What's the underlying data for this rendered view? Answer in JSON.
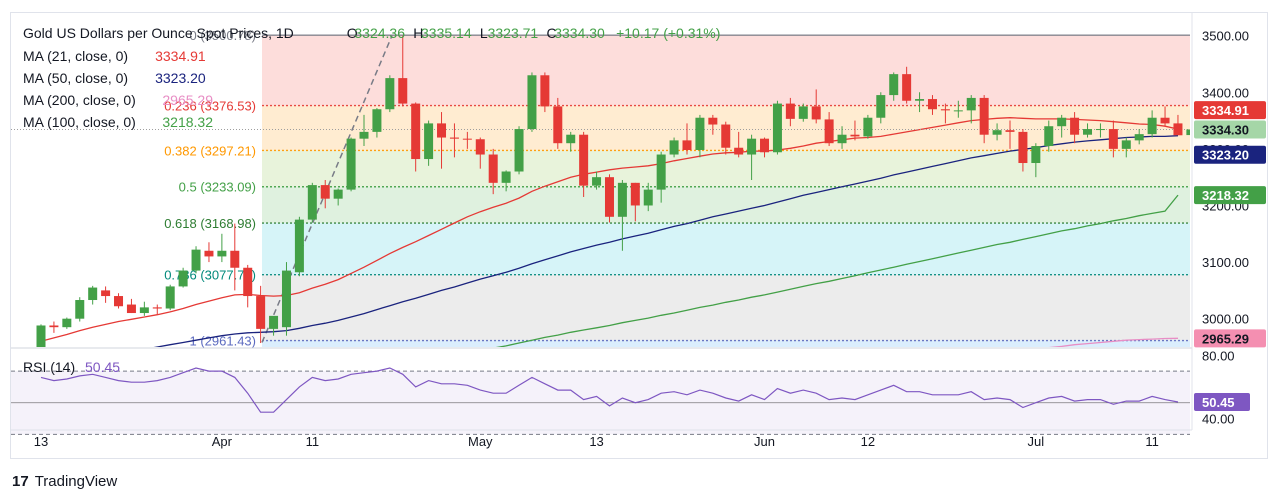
{
  "header": {
    "title": "Gold US Dollars per Ounce Spot Prices, 1D",
    "o_label": "O",
    "o": "3324.36",
    "h_label": "H",
    "h": "3335.14",
    "l_label": "L",
    "l": "3323.71",
    "c_label": "C",
    "c": "3334.30",
    "change": "+10.17 (+0.31%)"
  },
  "indicators": [
    {
      "label": "MA (21, close, 0)",
      "value": "3334.91",
      "color": "#e53935"
    },
    {
      "label": "MA (50, close, 0)",
      "value": "3323.20",
      "color": "#1a237e"
    },
    {
      "label": "MA (200, close, 0)",
      "value": "2965.29",
      "color": "#e88ec5"
    },
    {
      "label": "MA (100, close, 0)",
      "value": "3218.32",
      "color": "#43a047"
    }
  ],
  "rsi": {
    "label": "RSI (14)",
    "value": "50.45",
    "color": "#7e57c2",
    "upper": 70,
    "lower": 30,
    "ticks": [
      "80.00",
      "40.00"
    ]
  },
  "price_axis": {
    "ticks": [
      "3500.00",
      "3400.00",
      "3300.00",
      "3200.00",
      "3100.00",
      "3000.00"
    ]
  },
  "price_badges": [
    {
      "value": "3334.91",
      "color": "#e53935"
    },
    {
      "value": "3334.30",
      "color": "#a5d6a7"
    },
    {
      "value": "3323.20",
      "color": "#1a237e"
    },
    {
      "value": "3218.32",
      "color": "#43a047"
    },
    {
      "value": "2965.29",
      "color": "#f48fb1"
    }
  ],
  "rsi_badge": {
    "value": "50.45",
    "color": "#7e57c2"
  },
  "x_axis": {
    "labels": [
      "13",
      "Apr",
      "11",
      "May",
      "13",
      "Jun",
      "12",
      "Jul",
      "11"
    ]
  },
  "fib": [
    {
      "ratio": "0",
      "level": "3500.78",
      "label": "0 (3500.78)"
    },
    {
      "ratio": "0.236",
      "level": "3376.53",
      "label": "0.236 (3376.53)"
    },
    {
      "ratio": "0.382",
      "level": "3297.21",
      "label": "0.382 (3297.21)"
    },
    {
      "ratio": "0.5",
      "level": "3233.09",
      "label": "0.5 (3233.09)"
    },
    {
      "ratio": "0.618",
      "level": "3168.98",
      "label": "0.618 (3168.98)"
    },
    {
      "ratio": "0.786",
      "level": "3077.70",
      "label": "0.786 (3077.70)"
    },
    {
      "ratio": "1",
      "level": "2961.43",
      "label": "1 (2961.43)"
    }
  ],
  "brand": {
    "mark": "17",
    "name": "TradingView"
  },
  "colors": {
    "up": "#43a047",
    "down": "#e53935",
    "ma21": "#e53935",
    "ma50": "#1a237e",
    "ma100": "#43a047",
    "ma200": "#e88ec5",
    "rsi": "#7e57c2"
  },
  "chart_data": {
    "type": "candlestick",
    "title": "Gold US Dollars per Ounce Spot Prices, 1D",
    "timeframe": "1D",
    "ylim": [
      2950,
      3540
    ],
    "x": [
      "Mar 13",
      "Mar 14",
      "Mar 17",
      "Mar 18",
      "Mar 19",
      "Mar 20",
      "Mar 21",
      "Mar 24",
      "Mar 25",
      "Mar 26",
      "Mar 27",
      "Mar 28",
      "Mar 31",
      "Apr 1",
      "Apr 2",
      "Apr 3",
      "Apr 4",
      "Apr 7",
      "Apr 8",
      "Apr 9",
      "Apr 10",
      "Apr 11",
      "Apr 14",
      "Apr 15",
      "Apr 16",
      "Apr 17",
      "Apr 18",
      "Apr 21",
      "Apr 22",
      "Apr 23",
      "Apr 24",
      "Apr 25",
      "Apr 28",
      "Apr 29",
      "Apr 30",
      "May 1",
      "May 2",
      "May 5",
      "May 6",
      "May 7",
      "May 8",
      "May 9",
      "May 12",
      "May 13",
      "May 14",
      "May 15",
      "May 16",
      "May 19",
      "May 20",
      "May 21",
      "May 22",
      "May 23",
      "May 26",
      "May 27",
      "May 28",
      "May 29",
      "May 30",
      "Jun 2",
      "Jun 3",
      "Jun 4",
      "Jun 5",
      "Jun 6",
      "Jun 9",
      "Jun 10",
      "Jun 11",
      "Jun 12",
      "Jun 13",
      "Jun 16",
      "Jun 17",
      "Jun 18",
      "Jun 19",
      "Jun 20",
      "Jun 23",
      "Jun 24",
      "Jun 25",
      "Jun 26",
      "Jun 27",
      "Jun 30",
      "Jul 1",
      "Jul 2",
      "Jul 3",
      "Jul 4",
      "Jul 7",
      "Jul 8",
      "Jul 9",
      "Jul 10",
      "Jul 11",
      "Jul 14",
      "Jul 15"
    ],
    "ohlc": [
      [
        2935,
        2990,
        2930,
        2988
      ],
      [
        2988,
        2995,
        2975,
        2985
      ],
      [
        2985,
        3002,
        2982,
        3000
      ],
      [
        3000,
        3038,
        2995,
        3033
      ],
      [
        3033,
        3058,
        3025,
        3055
      ],
      [
        3050,
        3057,
        3028,
        3040
      ],
      [
        3040,
        3045,
        3018,
        3022
      ],
      [
        3025,
        3035,
        3010,
        3010
      ],
      [
        3010,
        3030,
        3005,
        3020
      ],
      [
        3020,
        3025,
        3008,
        3018
      ],
      [
        3018,
        3060,
        3015,
        3057
      ],
      [
        3057,
        3090,
        3055,
        3085
      ],
      [
        3085,
        3128,
        3080,
        3122
      ],
      [
        3120,
        3135,
        3100,
        3110
      ],
      [
        3110,
        3150,
        3100,
        3120
      ],
      [
        3120,
        3168,
        3050,
        3090
      ],
      [
        3090,
        3095,
        3020,
        3040
      ],
      [
        3040,
        3058,
        2957,
        2982
      ],
      [
        2982,
        3000,
        2970,
        3005
      ],
      [
        2985,
        3100,
        2970,
        3085
      ],
      [
        3082,
        3180,
        3075,
        3175
      ],
      [
        3175,
        3240,
        3170,
        3236
      ],
      [
        3236,
        3245,
        3195,
        3212
      ],
      [
        3212,
        3230,
        3200,
        3228
      ],
      [
        3228,
        3320,
        3225,
        3318
      ],
      [
        3318,
        3360,
        3305,
        3330
      ],
      [
        3330,
        3372,
        3320,
        3370
      ],
      [
        3370,
        3430,
        3365,
        3425
      ],
      [
        3425,
        3500,
        3375,
        3380
      ],
      [
        3380,
        3382,
        3260,
        3282
      ],
      [
        3282,
        3350,
        3270,
        3345
      ],
      [
        3345,
        3365,
        3265,
        3320
      ],
      [
        3320,
        3345,
        3285,
        3318
      ],
      [
        3318,
        3330,
        3300,
        3317
      ],
      [
        3317,
        3320,
        3265,
        3290
      ],
      [
        3290,
        3300,
        3220,
        3240
      ],
      [
        3240,
        3262,
        3225,
        3260
      ],
      [
        3260,
        3340,
        3255,
        3335
      ],
      [
        3335,
        3435,
        3330,
        3430
      ],
      [
        3430,
        3435,
        3365,
        3375
      ],
      [
        3375,
        3390,
        3300,
        3310
      ],
      [
        3310,
        3330,
        3295,
        3325
      ],
      [
        3325,
        3330,
        3215,
        3235
      ],
      [
        3235,
        3260,
        3228,
        3250
      ],
      [
        3250,
        3255,
        3170,
        3180
      ],
      [
        3180,
        3245,
        3120,
        3240
      ],
      [
        3240,
        3240,
        3172,
        3200
      ],
      [
        3200,
        3240,
        3190,
        3228
      ],
      [
        3228,
        3295,
        3205,
        3290
      ],
      [
        3290,
        3320,
        3285,
        3315
      ],
      [
        3315,
        3345,
        3290,
        3298
      ],
      [
        3298,
        3360,
        3285,
        3355
      ],
      [
        3355,
        3360,
        3325,
        3343
      ],
      [
        3343,
        3348,
        3290,
        3302
      ],
      [
        3302,
        3330,
        3285,
        3290
      ],
      [
        3290,
        3325,
        3245,
        3318
      ],
      [
        3318,
        3320,
        3285,
        3294
      ],
      [
        3294,
        3385,
        3290,
        3380
      ],
      [
        3380,
        3390,
        3340,
        3353
      ],
      [
        3353,
        3380,
        3348,
        3375
      ],
      [
        3375,
        3405,
        3345,
        3352
      ],
      [
        3352,
        3365,
        3305,
        3310
      ],
      [
        3310,
        3340,
        3300,
        3325
      ],
      [
        3325,
        3350,
        3315,
        3322
      ],
      [
        3322,
        3360,
        3318,
        3355
      ],
      [
        3355,
        3400,
        3345,
        3395
      ],
      [
        3395,
        3435,
        3385,
        3432
      ],
      [
        3432,
        3445,
        3380,
        3385
      ],
      [
        3385,
        3400,
        3365,
        3388
      ],
      [
        3388,
        3395,
        3360,
        3370
      ],
      [
        3370,
        3380,
        3345,
        3368
      ],
      [
        3368,
        3385,
        3355,
        3368
      ],
      [
        3368,
        3395,
        3345,
        3390
      ],
      [
        3390,
        3395,
        3310,
        3325
      ],
      [
        3325,
        3345,
        3315,
        3333
      ],
      [
        3333,
        3350,
        3300,
        3330
      ],
      [
        3330,
        3335,
        3260,
        3275
      ],
      [
        3275,
        3310,
        3250,
        3305
      ],
      [
        3305,
        3350,
        3295,
        3340
      ],
      [
        3340,
        3360,
        3320,
        3355
      ],
      [
        3355,
        3365,
        3310,
        3325
      ],
      [
        3325,
        3345,
        3320,
        3335
      ],
      [
        3335,
        3345,
        3320,
        3335
      ],
      [
        3335,
        3350,
        3285,
        3300
      ],
      [
        3300,
        3320,
        3285,
        3315
      ],
      [
        3315,
        3335,
        3308,
        3326
      ],
      [
        3326,
        3368,
        3320,
        3355
      ],
      [
        3355,
        3375,
        3340,
        3345
      ],
      [
        3345,
        3360,
        3325,
        3324
      ],
      [
        3324.36,
        3335.14,
        3323.71,
        3334.3
      ]
    ],
    "rsi": [
      66,
      64,
      65,
      67,
      68,
      66,
      64,
      63,
      63,
      64,
      66,
      69,
      72,
      70,
      70,
      66,
      56,
      44,
      44,
      52,
      60,
      66,
      64,
      65,
      68,
      69,
      70,
      72,
      68,
      60,
      64,
      62,
      62,
      61,
      58,
      56,
      56,
      61,
      66,
      62,
      58,
      58,
      52,
      54,
      48,
      53,
      50,
      52,
      56,
      57,
      55,
      58,
      56,
      53,
      51,
      55,
      52,
      59,
      56,
      58,
      56,
      52,
      53,
      52,
      55,
      58,
      61,
      57,
      57,
      55,
      55,
      55,
      57,
      52,
      53,
      52,
      47,
      50,
      53,
      54,
      51,
      52,
      52,
      49,
      51,
      51,
      54,
      52,
      50.45
    ],
    "ma21": [
      2960,
      2966,
      2972,
      2979,
      2985,
      2990,
      2995,
      2999,
      3003,
      3007,
      3012,
      3018,
      3025,
      3031,
      3037,
      3042,
      3043,
      3041,
      3040,
      3041,
      3046,
      3054,
      3061,
      3069,
      3080,
      3091,
      3103,
      3115,
      3126,
      3136,
      3147,
      3158,
      3169,
      3180,
      3189,
      3197,
      3204,
      3213,
      3225,
      3234,
      3242,
      3250,
      3255,
      3259,
      3263,
      3266,
      3268,
      3270,
      3274,
      3279,
      3283,
      3287,
      3291,
      3293,
      3294,
      3296,
      3296,
      3298,
      3301,
      3305,
      3310,
      3313,
      3316,
      3319,
      3320,
      3322,
      3326,
      3330,
      3334,
      3338,
      3342,
      3346,
      3350,
      3352,
      3354,
      3355,
      3354,
      3353,
      3353,
      3353,
      3352,
      3351,
      3350,
      3348,
      3346,
      3344,
      3343,
      3340,
      3334.91
    ],
    "ma50": [
      2915,
      2919,
      2923,
      2927,
      2931,
      2935,
      2939,
      2943,
      2946,
      2950,
      2954,
      2958,
      2962,
      2966,
      2970,
      2973,
      2975,
      2976,
      2977,
      2979,
      2983,
      2988,
      2992,
      2997,
      3003,
      3009,
      3016,
      3023,
      3030,
      3036,
      3043,
      3050,
      3056,
      3063,
      3070,
      3076,
      3082,
      3089,
      3097,
      3104,
      3111,
      3118,
      3124,
      3130,
      3135,
      3141,
      3146,
      3151,
      3157,
      3163,
      3168,
      3174,
      3180,
      3185,
      3190,
      3195,
      3200,
      3206,
      3212,
      3218,
      3223,
      3228,
      3233,
      3238,
      3243,
      3248,
      3254,
      3259,
      3264,
      3269,
      3274,
      3279,
      3284,
      3288,
      3292,
      3296,
      3299,
      3302,
      3306,
      3309,
      3312,
      3314,
      3316,
      3318,
      3320,
      3321,
      3322,
      3322,
      3323.2
    ],
    "ma100": [
      2820,
      2823,
      2826,
      2829,
      2832,
      2835,
      2838,
      2841,
      2844,
      2847,
      2850,
      2853,
      2857,
      2860,
      2864,
      2867,
      2869,
      2871,
      2873,
      2876,
      2880,
      2884,
      2888,
      2892,
      2896,
      2901,
      2906,
      2911,
      2916,
      2920,
      2925,
      2930,
      2935,
      2939,
      2944,
      2948,
      2952,
      2957,
      2962,
      2967,
      2971,
      2976,
      2980,
      2984,
      2988,
      2993,
      2997,
      3001,
      3006,
      3010,
      3015,
      3020,
      3024,
      3029,
      3033,
      3038,
      3042,
      3047,
      3052,
      3057,
      3062,
      3066,
      3071,
      3076,
      3081,
      3086,
      3091,
      3096,
      3101,
      3106,
      3111,
      3116,
      3121,
      3126,
      3131,
      3135,
      3140,
      3145,
      3150,
      3155,
      3159,
      3164,
      3168,
      3173,
      3177,
      3182,
      3186,
      3190,
      3218.32
    ],
    "ma200": [
      2700,
      2703,
      2705,
      2708,
      2710,
      2713,
      2715,
      2718,
      2720,
      2723,
      2725,
      2728,
      2730,
      2733,
      2736,
      2738,
      2741,
      2743,
      2745,
      2748,
      2751,
      2754,
      2757,
      2760,
      2763,
      2766,
      2770,
      2773,
      2777,
      2780,
      2784,
      2787,
      2791,
      2794,
      2798,
      2801,
      2805,
      2808,
      2812,
      2815,
      2819,
      2822,
      2826,
      2829,
      2833,
      2836,
      2840,
      2843,
      2847,
      2850,
      2854,
      2857,
      2861,
      2864,
      2868,
      2871,
      2875,
      2878,
      2882,
      2885,
      2889,
      2892,
      2896,
      2899,
      2903,
      2906,
      2910,
      2913,
      2917,
      2920,
      2924,
      2927,
      2931,
      2934,
      2937,
      2940,
      2943,
      2946,
      2949,
      2951,
      2954,
      2956,
      2958,
      2960,
      2962,
      2963,
      2964,
      2965,
      2965.29
    ]
  }
}
